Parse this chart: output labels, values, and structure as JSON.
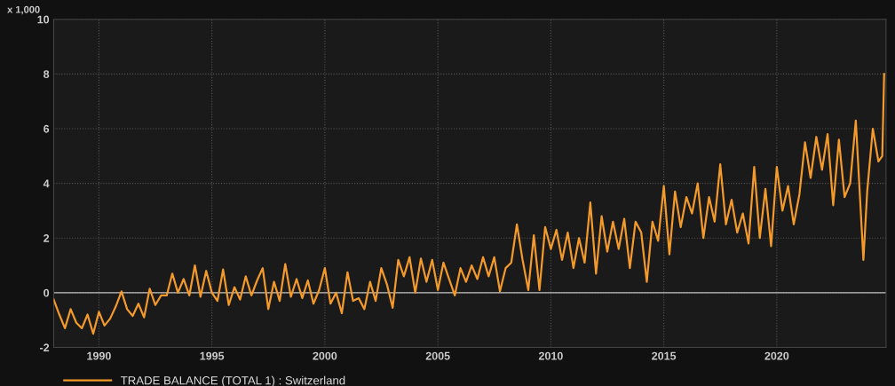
{
  "chart_data": {
    "type": "line",
    "ylabel": "x 1,000",
    "xlim": [
      "1988-01",
      "2024-11"
    ],
    "xticks": [
      "1990",
      "1995",
      "2000",
      "2005",
      "2010",
      "2015",
      "2020"
    ],
    "ylim": [
      -2,
      10
    ],
    "yticks": [
      -2,
      0,
      2,
      4,
      6,
      8,
      10
    ],
    "grid": true,
    "legend": "bottom left",
    "line_style": "solid",
    "marker": "none",
    "ref_lines": [
      {
        "axis": "y",
        "value": 0,
        "color": "#bfbfbf"
      }
    ],
    "x": [
      "1988-01",
      "1988-04",
      "1988-07",
      "1988-10",
      "1989-01",
      "1989-04",
      "1989-07",
      "1989-10",
      "1990-01",
      "1990-04",
      "1990-07",
      "1990-10",
      "1991-01",
      "1991-04",
      "1991-07",
      "1991-10",
      "1992-01",
      "1992-04",
      "1992-07",
      "1992-10",
      "1993-01",
      "1993-04",
      "1993-07",
      "1993-10",
      "1994-01",
      "1994-04",
      "1994-07",
      "1994-10",
      "1995-01",
      "1995-04",
      "1995-07",
      "1995-10",
      "1996-01",
      "1996-04",
      "1996-07",
      "1996-10",
      "1997-01",
      "1997-04",
      "1997-07",
      "1997-10",
      "1998-01",
      "1998-04",
      "1998-07",
      "1998-10",
      "1999-01",
      "1999-04",
      "1999-07",
      "1999-10",
      "2000-01",
      "2000-04",
      "2000-07",
      "2000-10",
      "2001-01",
      "2001-04",
      "2001-07",
      "2001-10",
      "2002-01",
      "2002-04",
      "2002-07",
      "2002-10",
      "2003-01",
      "2003-04",
      "2003-07",
      "2003-10",
      "2004-01",
      "2004-04",
      "2004-07",
      "2004-10",
      "2005-01",
      "2005-04",
      "2005-07",
      "2005-10",
      "2006-01",
      "2006-04",
      "2006-07",
      "2006-10",
      "2007-01",
      "2007-04",
      "2007-07",
      "2007-10",
      "2008-01",
      "2008-04",
      "2008-07",
      "2008-10",
      "2009-01",
      "2009-04",
      "2009-07",
      "2009-10",
      "2010-01",
      "2010-04",
      "2010-07",
      "2010-10",
      "2011-01",
      "2011-04",
      "2011-07",
      "2011-10",
      "2012-01",
      "2012-04",
      "2012-07",
      "2012-10",
      "2013-01",
      "2013-04",
      "2013-07",
      "2013-10",
      "2014-01",
      "2014-04",
      "2014-07",
      "2014-10",
      "2015-01",
      "2015-04",
      "2015-07",
      "2015-10",
      "2016-01",
      "2016-04",
      "2016-07",
      "2016-10",
      "2017-01",
      "2017-04",
      "2017-07",
      "2017-10",
      "2018-01",
      "2018-04",
      "2018-07",
      "2018-10",
      "2019-01",
      "2019-04",
      "2019-07",
      "2019-10",
      "2020-01",
      "2020-04",
      "2020-07",
      "2020-10",
      "2021-01",
      "2021-04",
      "2021-07",
      "2021-10",
      "2022-01",
      "2022-04",
      "2022-07",
      "2022-10",
      "2023-01",
      "2023-04",
      "2023-07",
      "2023-11",
      "2024-01",
      "2024-04",
      "2024-07",
      "2024-09",
      "2024-10"
    ],
    "series": [
      {
        "name": "TRADE BALANCE (TOTAL 1) : Switzerland",
        "color": "#f39a2b",
        "values": [
          -0.25,
          -0.8,
          -1.3,
          -0.6,
          -1.1,
          -1.3,
          -0.8,
          -1.5,
          -0.7,
          -1.2,
          -0.95,
          -0.5,
          0.05,
          -0.6,
          -0.85,
          -0.4,
          -0.9,
          0.15,
          -0.45,
          -0.1,
          -0.1,
          0.7,
          0.0,
          0.5,
          -0.1,
          1.0,
          -0.15,
          0.8,
          0.0,
          -0.3,
          0.85,
          -0.45,
          0.2,
          -0.25,
          0.6,
          -0.1,
          0.45,
          0.9,
          -0.6,
          0.4,
          -0.3,
          1.05,
          -0.15,
          0.5,
          -0.2,
          0.45,
          -0.4,
          0.1,
          0.9,
          -0.4,
          0.0,
          -0.75,
          0.75,
          -0.3,
          -0.2,
          -0.6,
          0.4,
          -0.3,
          0.9,
          0.3,
          -0.55,
          1.2,
          0.6,
          1.3,
          0.0,
          1.25,
          0.4,
          1.2,
          0.1,
          1.1,
          0.5,
          -0.1,
          0.9,
          0.4,
          1.0,
          0.5,
          1.3,
          0.6,
          1.3,
          0.05,
          0.9,
          1.1,
          2.5,
          1.2,
          0.1,
          2.1,
          0.1,
          2.4,
          1.6,
          2.3,
          1.2,
          2.2,
          0.9,
          2.0,
          1.1,
          3.3,
          0.7,
          2.8,
          1.5,
          2.6,
          1.6,
          2.7,
          0.9,
          2.6,
          2.2,
          0.4,
          2.6,
          1.9,
          3.9,
          1.4,
          3.7,
          2.4,
          3.5,
          2.9,
          4.0,
          2.0,
          3.5,
          2.6,
          4.7,
          2.5,
          3.4,
          2.2,
          2.9,
          1.8,
          4.6,
          2.0,
          3.8,
          1.7,
          4.6,
          3.0,
          3.9,
          2.5,
          3.6,
          5.5,
          4.2,
          5.7,
          4.5,
          5.8,
          3.2,
          5.6,
          3.5,
          4.0,
          6.3,
          1.2,
          3.7,
          6.0,
          4.8,
          5.0,
          8.0
        ]
      }
    ]
  }
}
